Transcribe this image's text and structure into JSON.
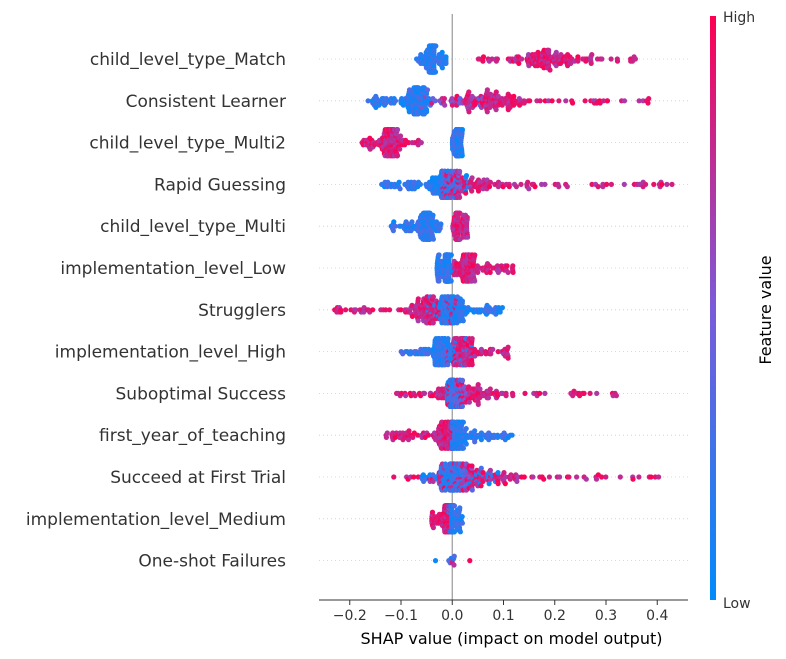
{
  "chart_data": {
    "type": "scatter",
    "subtype": "shap-beeswarm",
    "title": "",
    "xlabel": "SHAP value (impact on model output)",
    "xlim": [
      -0.26,
      0.46
    ],
    "x_ticks": [
      -0.2,
      -0.1,
      0.0,
      0.1,
      0.2,
      0.3,
      0.4
    ],
    "x_tick_labels": [
      "−0.2",
      "−0.1",
      "0.0",
      "0.1",
      "0.2",
      "0.3",
      "0.4"
    ],
    "grid": false,
    "colorbar": {
      "title": "Feature value",
      "high_label": "High",
      "low_label": "Low",
      "high_color": "#ff0052",
      "low_color": "#008bfb",
      "placement": "right"
    },
    "features": [
      {
        "name": "child_level_type_Match",
        "low_range": [
          -0.07,
          -0.01
        ],
        "high_range": [
          0.05,
          0.38
        ],
        "low_core": -0.04,
        "high_core": 0.18,
        "split": "high-right"
      },
      {
        "name": "Consistent Learner",
        "low_range": [
          -0.17,
          -0.04
        ],
        "high_range": [
          -0.04,
          0.39
        ],
        "low_core": -0.07,
        "high_core": 0.08,
        "split": "mixed-right"
      },
      {
        "name": "child_level_type_Multi2",
        "low_range": [
          0.0,
          0.02
        ],
        "high_range": [
          -0.18,
          -0.06
        ],
        "low_core": 0.01,
        "high_core": -0.12,
        "split": "high-left"
      },
      {
        "name": "Rapid Guessing",
        "low_range": [
          -0.14,
          0.04
        ],
        "high_range": [
          -0.02,
          0.43
        ],
        "low_core": -0.02,
        "high_core": 0.02,
        "split": "mixed-right"
      },
      {
        "name": "child_level_type_Multi",
        "low_range": [
          -0.12,
          -0.02
        ],
        "high_range": [
          0.0,
          0.03
        ],
        "low_core": -0.05,
        "high_core": 0.01,
        "split": "high-right"
      },
      {
        "name": "implementation_level_Low",
        "low_range": [
          -0.03,
          0.0
        ],
        "high_range": [
          0.0,
          0.12
        ],
        "low_core": -0.01,
        "high_core": 0.03,
        "split": "high-right"
      },
      {
        "name": "Strugglers",
        "low_range": [
          -0.05,
          0.1
        ],
        "high_range": [
          -0.23,
          0.01
        ],
        "low_core": 0.0,
        "high_core": -0.05,
        "split": "high-left"
      },
      {
        "name": "implementation_level_High",
        "low_range": [
          -0.1,
          0.04
        ],
        "high_range": [
          -0.01,
          0.11
        ],
        "low_core": -0.02,
        "high_core": 0.02,
        "split": "high-right"
      },
      {
        "name": "Suboptimal Success",
        "low_range": [
          -0.01,
          0.02
        ],
        "high_range": [
          -0.11,
          0.35
        ],
        "low_core": 0.0,
        "high_core": 0.03,
        "split": "mixed-right"
      },
      {
        "name": "first_year_of_teaching",
        "low_range": [
          0.0,
          0.12
        ],
        "high_range": [
          -0.13,
          0.0
        ],
        "low_core": 0.01,
        "high_core": -0.01,
        "split": "high-left"
      },
      {
        "name": "Succeed at First Trial",
        "low_range": [
          -0.06,
          0.09
        ],
        "high_range": [
          -0.14,
          0.41
        ],
        "low_core": 0.0,
        "high_core": 0.04,
        "split": "mixed-right"
      },
      {
        "name": "implementation_level_Medium",
        "low_range": [
          -0.01,
          0.02
        ],
        "high_range": [
          -0.04,
          0.0
        ],
        "low_core": 0.0,
        "high_core": -0.01,
        "split": "high-left"
      },
      {
        "name": "One-shot Failures",
        "low_range": [
          -0.04,
          0.01
        ],
        "high_range": [
          0.0,
          0.16
        ],
        "low_core": 0.0,
        "high_core": 0.0,
        "split": "sparse"
      }
    ]
  }
}
